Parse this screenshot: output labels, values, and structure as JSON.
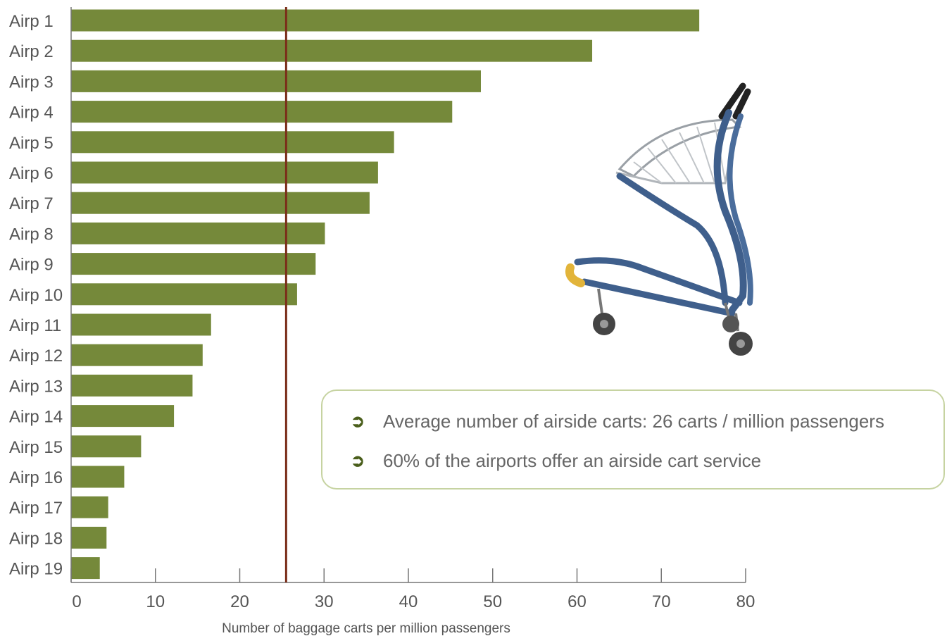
{
  "chart_data": {
    "type": "bar",
    "orientation": "horizontal",
    "categories": [
      "Airp 1",
      "Airp 2",
      "Airp 3",
      "Airp 4",
      "Airp 5",
      "Airp 6",
      "Airp 7",
      "Airp 8",
      "Airp 9",
      "Airp 10",
      "Airp 11",
      "Airp 12",
      "Airp 13",
      "Airp 14",
      "Airp 15",
      "Airp 16",
      "Airp 17",
      "Airp 18",
      "Airp 19"
    ],
    "values": [
      74.5,
      61.8,
      48.6,
      45.2,
      38.3,
      36.4,
      35.4,
      30.1,
      29.0,
      26.8,
      16.6,
      15.6,
      14.4,
      12.2,
      8.3,
      6.3,
      4.4,
      4.2,
      3.4
    ],
    "title": "",
    "xlabel": "Number of baggage carts per million passengers",
    "ylabel": "",
    "xlim": [
      0,
      80
    ],
    "xticks": [
      "0",
      "10",
      "20",
      "30",
      "40",
      "50",
      "60",
      "70",
      "80"
    ],
    "reference_line": {
      "value": 25.5,
      "color": "#7b2e1a"
    },
    "bar_color": "#75893a",
    "grid": false,
    "legend": "none"
  },
  "info_box": {
    "bullets": [
      "Average number of airside carts: 26 carts / million passengers",
      "60% of the airports offer an airside cart service"
    ],
    "arrow_glyph": "➲",
    "border_color": "#c6d3a1",
    "arrow_color": "#4a5e1b"
  },
  "illustration": {
    "icon": "baggage-cart-icon",
    "frame_color": "#3f5f8c",
    "handle_color": "#e2b43a"
  }
}
